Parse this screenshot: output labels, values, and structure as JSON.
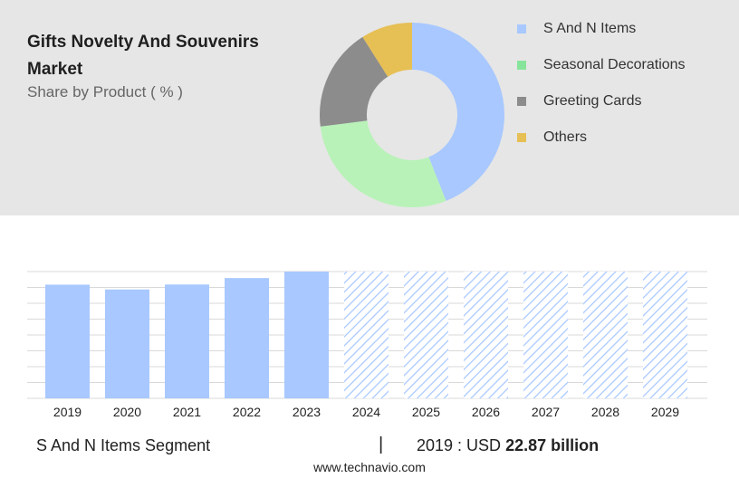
{
  "header": {
    "title": "Gifts Novelty And Souvenirs Market",
    "subtitle": "Share by Product ( % )"
  },
  "chart_data": [
    {
      "type": "pie",
      "categories": [
        "S And N Items",
        "Seasonal Decorations",
        "Greeting Cards",
        "Others"
      ],
      "values": [
        44,
        29,
        18,
        9
      ],
      "colors": [
        "#a8c8ff",
        "#b8f2b8",
        "#8c8c8c",
        "#e6bf55"
      ],
      "legend_colors": [
        "#a8c8ff",
        "#86e59a",
        "#8c8c8c",
        "#e6bf55"
      ],
      "donut": true,
      "legend": "right"
    },
    {
      "type": "bar",
      "categories": [
        "2019",
        "2020",
        "2021",
        "2022",
        "2023",
        "2024",
        "2025",
        "2026",
        "2027",
        "2028",
        "2029"
      ],
      "values": [
        22.87,
        21.9,
        22.9,
        24.2,
        25.5,
        null,
        null,
        null,
        null,
        null,
        null
      ],
      "forecast_categories": [
        "2024",
        "2025",
        "2026",
        "2027",
        "2028",
        "2029"
      ],
      "series_name": "S And N Items Segment",
      "bar_color": "#a8c8ff",
      "grid": true
    }
  ],
  "footer": {
    "segment_label": "S And N Items Segment",
    "separator": "|",
    "year_label": "2019 : USD",
    "value_label": "22.87 billion",
    "source": "www.technavio.com"
  }
}
